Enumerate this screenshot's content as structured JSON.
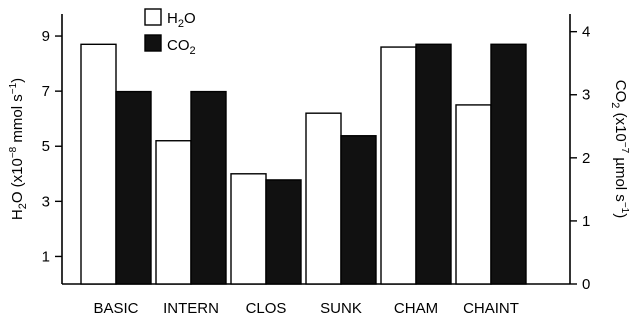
{
  "chart_data": {
    "type": "bar",
    "categories": [
      "BASIC",
      "INTERN",
      "CLOS",
      "SUNK",
      "CHAM",
      "CHAINT"
    ],
    "series": [
      {
        "name": "H2O",
        "axis": "left",
        "color": "#ffffff",
        "values": [
          8.7,
          5.2,
          4.0,
          6.2,
          8.6,
          6.5
        ]
      },
      {
        "name": "CO2",
        "axis": "right",
        "color": "#111111",
        "values": [
          3.05,
          3.05,
          1.65,
          2.35,
          3.8,
          3.8
        ]
      }
    ],
    "y_left": {
      "label": {
        "main": "H",
        "sub": "2",
        "mid": "O (x10",
        "sup": "−8",
        "end": " mmol s",
        "sup2": "−1",
        "close": ")"
      },
      "ylim": [
        0,
        9.8
      ],
      "ticks": [
        1,
        3,
        5,
        7,
        9
      ],
      "tick_labels": [
        "1",
        "3",
        "5",
        "7",
        "9"
      ]
    },
    "y_right": {
      "label": {
        "main": "CO",
        "sub": "2",
        "mid": " (x10",
        "sup": "−7",
        "end": " µmol s",
        "sup2": "−1",
        "close": ")"
      },
      "ylim": [
        0,
        4.28
      ],
      "ticks": [
        0,
        1,
        2,
        3,
        4
      ],
      "tick_labels": [
        "0",
        "1",
        "2",
        "3",
        "4"
      ]
    },
    "legend": {
      "placement": "top-left",
      "entries": [
        {
          "main": "H",
          "sub": "2",
          "end": "O"
        },
        {
          "main": "CO",
          "sub": "2",
          "end": ""
        }
      ]
    },
    "grid": false
  }
}
